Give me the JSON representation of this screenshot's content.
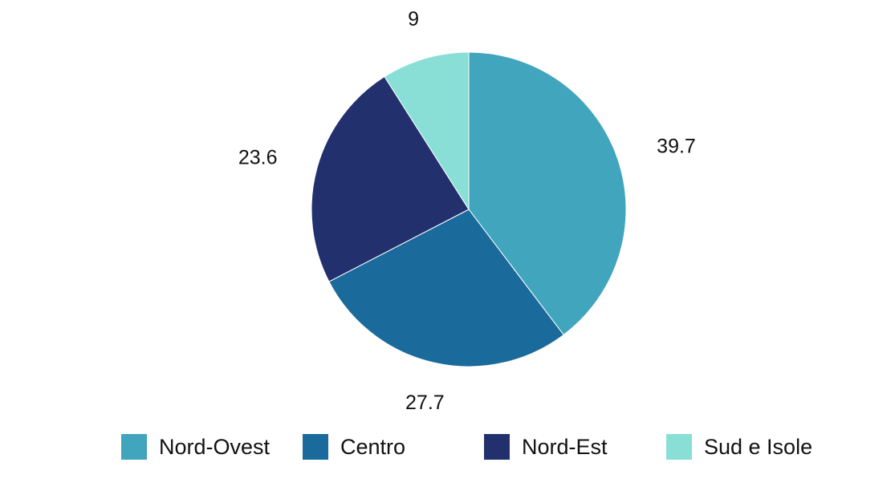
{
  "chart_data": {
    "type": "pie",
    "title": "",
    "legend_position": "bottom",
    "start_angle_deg": 0,
    "direction": "clockwise",
    "series": [
      {
        "values": [
          {
            "label": "Nord-Ovest",
            "value": 39.7,
            "display": "39.7",
            "color": "#41A5BD"
          },
          {
            "label": "Centro",
            "value": 27.7,
            "display": "27.7",
            "color": "#1A6B9C"
          },
          {
            "label": "Nord-Est",
            "value": 23.6,
            "display": "23.6",
            "color": "#22316D"
          },
          {
            "label": "Sud e Isole",
            "value": 9,
            "display": "9",
            "color": "#89DFD6"
          }
        ]
      }
    ]
  }
}
